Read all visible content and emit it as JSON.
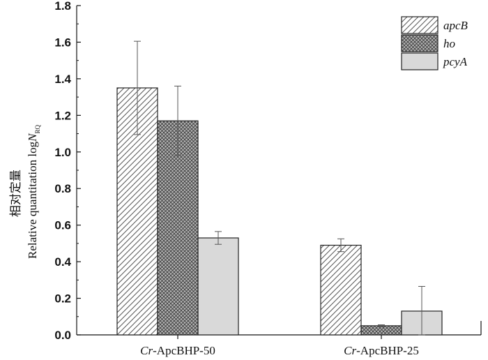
{
  "chart_data": {
    "type": "bar",
    "categories": [
      "Cr-ApcBHP-50",
      "Cr-ApcBHP-25"
    ],
    "category_parts": [
      {
        "prefix": "Cr",
        "suffix": "-ApcBHP-50"
      },
      {
        "prefix": "Cr",
        "suffix": "-ApcBHP-25"
      }
    ],
    "series": [
      {
        "name": "apcB",
        "pattern": "hatch",
        "values": [
          1.35,
          0.49
        ],
        "error": [
          0.255,
          0.035
        ]
      },
      {
        "name": "ho",
        "pattern": "crosshatch",
        "values": [
          1.17,
          0.05
        ],
        "error": [
          0.19,
          0.005
        ]
      },
      {
        "name": "pcyA",
        "pattern": "solid-gray",
        "values": [
          0.53,
          0.13
        ],
        "error": [
          0.035,
          0.135
        ]
      }
    ],
    "ylabel_cn": "相对定量",
    "ylabel_en_main": "Relative quantitation log",
    "ylabel_en_var": "N",
    "ylabel_en_sub": "RQ",
    "ylim": [
      0,
      1.8
    ],
    "yticks": [
      0.0,
      0.2,
      0.4,
      0.6,
      0.8,
      1.0,
      1.2,
      1.4,
      1.6,
      1.8
    ],
    "ytick_labels": [
      "0.0",
      "0.2",
      "0.4",
      "0.6",
      "0.8",
      "1.0",
      "1.2",
      "1.4",
      "1.6",
      "1.8"
    ],
    "legend_position": "top-right",
    "grid": false,
    "colors": {
      "gray_fill": "#d9d9d9",
      "crosshatch_fill": "#b5b5b5",
      "stroke": "#222222"
    }
  }
}
